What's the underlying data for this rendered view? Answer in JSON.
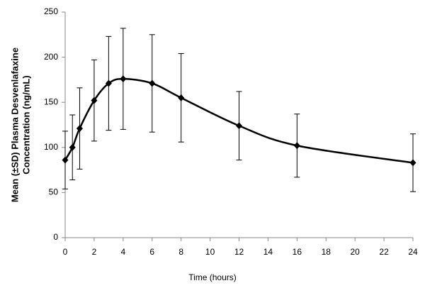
{
  "chart_data": {
    "type": "line",
    "xlabel": "Time (hours)",
    "ylabel": [
      "Mean (±SD) Plasma Desvenlafaxine",
      "Concentration (ng/mL)"
    ],
    "x": [
      0,
      0.5,
      1,
      2,
      3,
      4,
      6,
      8,
      12,
      16,
      24
    ],
    "series": [
      {
        "color": "#000000",
        "values": [
          86,
          100,
          121,
          152,
          171,
          176,
          171,
          155,
          124,
          102,
          83
        ],
        "errors": [
          32,
          36,
          45,
          45,
          52,
          56,
          54,
          49,
          38,
          35,
          32
        ]
      }
    ],
    "xlim": [
      0,
      24
    ],
    "xticks": [
      0,
      2,
      4,
      6,
      8,
      10,
      12,
      14,
      16,
      18,
      20,
      22,
      24
    ],
    "ylim": [
      0,
      250
    ],
    "yticks": [
      0,
      50,
      100,
      150,
      200,
      250
    ],
    "grid": false,
    "smooth": true
  }
}
